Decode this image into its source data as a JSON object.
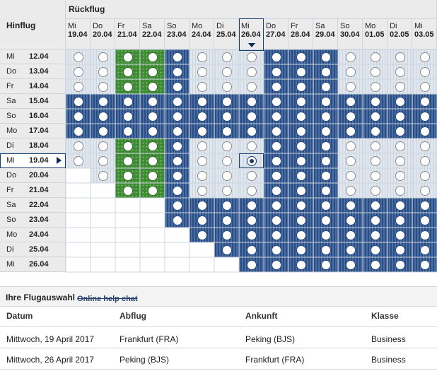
{
  "calendar": {
    "outbound_label": "Hinflug",
    "return_label": "Rückflug",
    "columns": [
      {
        "wd": "Mi",
        "dt": "19.04"
      },
      {
        "wd": "Do",
        "dt": "20.04"
      },
      {
        "wd": "Fr",
        "dt": "21.04"
      },
      {
        "wd": "Sa",
        "dt": "22.04"
      },
      {
        "wd": "So",
        "dt": "23.04"
      },
      {
        "wd": "Mo",
        "dt": "24.04"
      },
      {
        "wd": "Di",
        "dt": "25.04"
      },
      {
        "wd": "Mi",
        "dt": "26.04"
      },
      {
        "wd": "Do",
        "dt": "27.04"
      },
      {
        "wd": "Fr",
        "dt": "28.04"
      },
      {
        "wd": "Sa",
        "dt": "29.04"
      },
      {
        "wd": "So",
        "dt": "30.04"
      },
      {
        "wd": "Mo",
        "dt": "01.05"
      },
      {
        "wd": "Di",
        "dt": "02.05"
      },
      {
        "wd": "Mi",
        "dt": "03.05"
      }
    ],
    "rows": [
      {
        "wd": "Mi",
        "dt": "12.04"
      },
      {
        "wd": "Do",
        "dt": "13.04"
      },
      {
        "wd": "Fr",
        "dt": "14.04"
      },
      {
        "wd": "Sa",
        "dt": "15.04"
      },
      {
        "wd": "So",
        "dt": "16.04"
      },
      {
        "wd": "Mo",
        "dt": "17.04"
      },
      {
        "wd": "Di",
        "dt": "18.04"
      },
      {
        "wd": "Mi",
        "dt": "19.04"
      },
      {
        "wd": "Do",
        "dt": "20.04"
      },
      {
        "wd": "Fr",
        "dt": "21.04"
      },
      {
        "wd": "Sa",
        "dt": "22.04"
      },
      {
        "wd": "So",
        "dt": "23.04"
      },
      {
        "wd": "Mo",
        "dt": "24.04"
      },
      {
        "wd": "Di",
        "dt": "25.04"
      },
      {
        "wd": "Mi",
        "dt": "26.04"
      }
    ],
    "selected_outbound_row": 7,
    "selected_return_col": 7,
    "colors": {
      "blue": "#4a6ea6",
      "blue_stripe": "#2a4c80",
      "green": "#3f8a37",
      "green_dot": "#7cc46a",
      "default": "#dfe6ee"
    }
  },
  "selection": {
    "title": "Ihre Flugauswahl",
    "help_link": "Online help chat",
    "headers": {
      "datum": "Datum",
      "abflug": "Abflug",
      "ankunft": "Ankunft",
      "klasse": "Klasse"
    },
    "flights": [
      {
        "datum": "Mittwoch, 19 April 2017",
        "abflug": "Frankfurt (FRA)",
        "ankunft": "Peking (BJS)",
        "klasse": "Business"
      },
      {
        "datum": "Mittwoch, 26 April 2017",
        "abflug": "Peking (BJS)",
        "ankunft": "Frankfurt (FRA)",
        "klasse": "Business"
      }
    ]
  }
}
